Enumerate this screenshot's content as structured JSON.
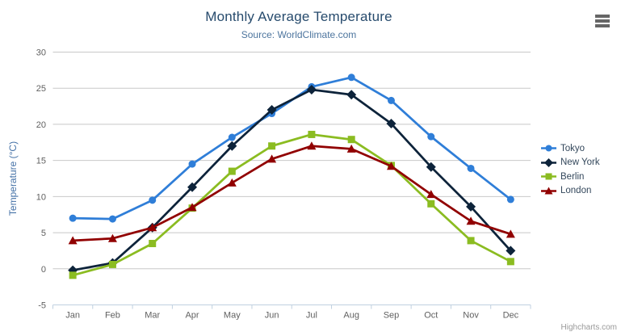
{
  "chart": {
    "title": "Monthly Average Temperature",
    "subtitle": "Source: WorldClimate.com",
    "credits": "Highcharts.com",
    "menu_icon": "hamburger-icon",
    "background_color": "#ffffff",
    "grid_color": "#c8c8c8",
    "axis_line_color": "#c0d0e0",
    "tick_label_color": "#606060",
    "title_color": "#274b6d",
    "subtitle_color": "#4d759e",
    "axis_title_color": "#4572a7",
    "legend_text_color": "#33475b",
    "credits_color": "#999999",
    "menu_icon_color": "#666666"
  },
  "chart_data": {
    "type": "line",
    "title": "Monthly Average Temperature",
    "subtitle": "Source: WorldClimate.com",
    "xlabel": "",
    "ylabel": "Temperature (°C)",
    "ylim": [
      -5,
      30
    ],
    "yticks": [
      -5,
      0,
      5,
      10,
      15,
      20,
      25,
      30
    ],
    "grid": "horizontal",
    "legend_position": "right",
    "categories": [
      "Jan",
      "Feb",
      "Mar",
      "Apr",
      "May",
      "Jun",
      "Jul",
      "Aug",
      "Sep",
      "Oct",
      "Nov",
      "Dec"
    ],
    "series": [
      {
        "name": "Tokyo",
        "color": "#2f7ed8",
        "marker": "circle",
        "values": [
          7.0,
          6.9,
          9.5,
          14.5,
          18.2,
          21.5,
          25.2,
          26.5,
          23.3,
          18.3,
          13.9,
          9.6
        ]
      },
      {
        "name": "New York",
        "color": "#0d233a",
        "marker": "diamond",
        "values": [
          -0.2,
          0.8,
          5.7,
          11.3,
          17.0,
          22.0,
          24.8,
          24.1,
          20.1,
          14.1,
          8.6,
          2.5
        ]
      },
      {
        "name": "Berlin",
        "color": "#8bbc21",
        "marker": "square",
        "values": [
          -0.9,
          0.6,
          3.5,
          8.4,
          13.5,
          17.0,
          18.6,
          17.9,
          14.3,
          9.0,
          3.9,
          1.0
        ]
      },
      {
        "name": "London",
        "color": "#910000",
        "marker": "triangle",
        "values": [
          3.9,
          4.2,
          5.7,
          8.5,
          11.9,
          15.2,
          17.0,
          16.6,
          14.2,
          10.3,
          6.6,
          4.8
        ]
      }
    ]
  }
}
